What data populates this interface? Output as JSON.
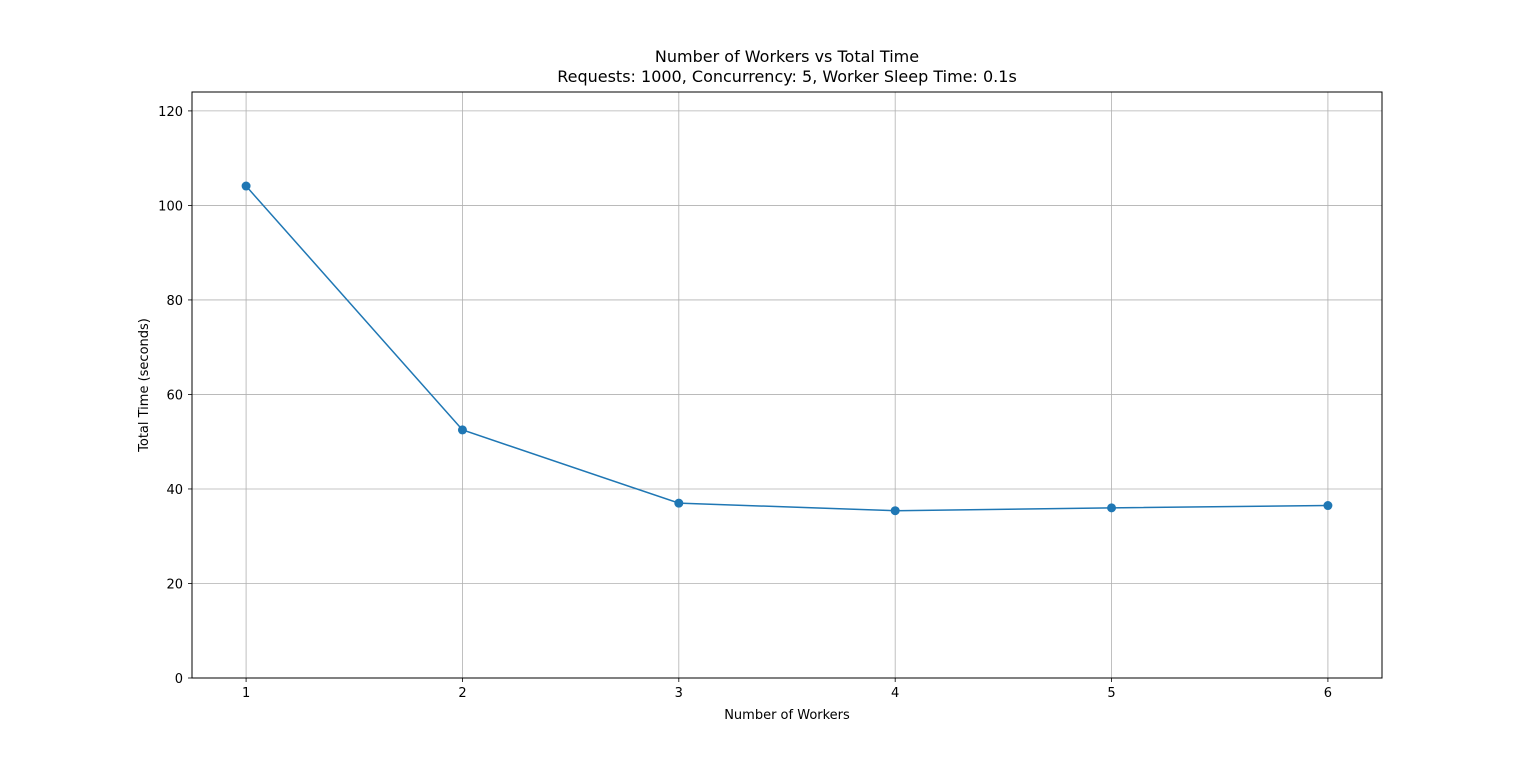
{
  "chart_data": {
    "type": "line",
    "title": "Number of Workers vs Total Time",
    "subtitle": "Requests: 1000, Concurrency: 5, Worker Sleep Time: 0.1s",
    "xlabel": "Number of Workers",
    "ylabel": "Total Time (seconds)",
    "x": [
      1,
      2,
      3,
      4,
      5,
      6
    ],
    "x_ticks": [
      "1",
      "2",
      "3",
      "4",
      "5",
      "6"
    ],
    "y_ticks": [
      "0",
      "20",
      "40",
      "60",
      "80",
      "100",
      "120"
    ],
    "xlim": [
      0.75,
      6.25
    ],
    "ylim": [
      0,
      124
    ],
    "series": [
      {
        "values": [
          104.1,
          52.5,
          37.0,
          35.4,
          36.0,
          36.5
        ],
        "color": "#1f77b4",
        "marker": "circle"
      }
    ],
    "grid": true,
    "legend": "none"
  }
}
